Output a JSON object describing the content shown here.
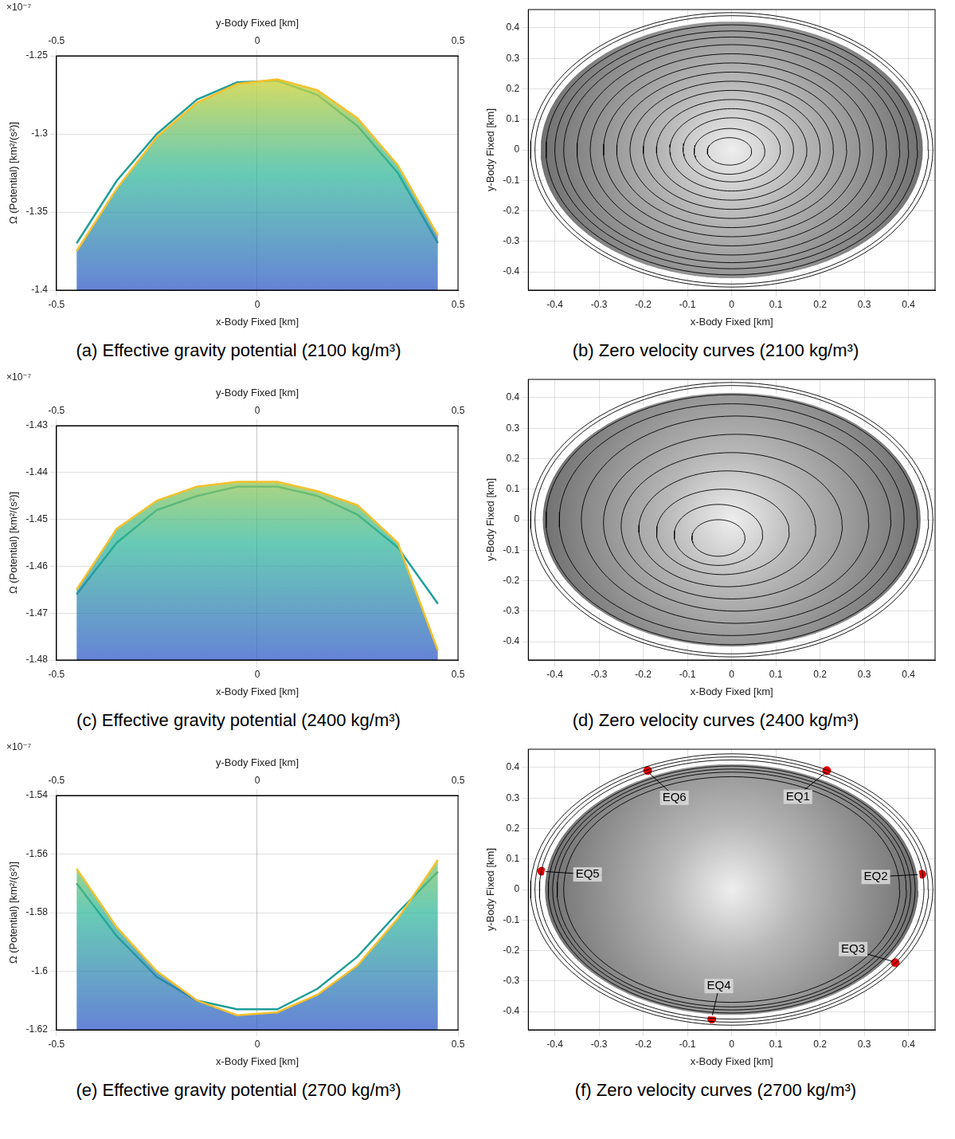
{
  "chart_data": [
    {
      "type": "line",
      "title": "(a) Effective gravity potential (2100 kg/m³)",
      "x_label": "x-Body Fixed [km]",
      "x2_label": "y-Body Fixed [km]",
      "y_label": "Ω (Potential) [km²/(s²)]",
      "y_multiplier": "×10⁻⁷",
      "xlim": [
        -0.5,
        0.5
      ],
      "xticks": [
        -0.5,
        0,
        0.5
      ],
      "x2lim": [
        -0.5,
        0.5
      ],
      "x2ticks": [
        -0.5,
        0,
        0.5
      ],
      "ylim": [
        -1.4,
        -1.25
      ],
      "yticks": [
        -1.4,
        -1.35,
        -1.3,
        -1.25
      ],
      "grid": true,
      "x": [
        -0.45,
        -0.35,
        -0.25,
        -0.15,
        -0.05,
        0.05,
        0.15,
        0.25,
        0.35,
        0.45
      ],
      "series": [
        {
          "color": "#f5c02c",
          "values": [
            -1.375,
            -1.335,
            -1.302,
            -1.28,
            -1.268,
            -1.265,
            -1.272,
            -1.29,
            -1.32,
            -1.365
          ]
        },
        {
          "color": "#1f9e9a",
          "axis": "x2",
          "values": [
            -1.37,
            -1.33,
            -1.3,
            -1.278,
            -1.267,
            -1.266,
            -1.275,
            -1.295,
            -1.325,
            -1.37
          ]
        }
      ]
    },
    {
      "type": "contour",
      "title": "(b) Zero velocity curves (2100 kg/m³)",
      "x_label": "x-Body Fixed [km]",
      "y_label": "y-Body Fixed [km]",
      "xlim": [
        -0.46,
        0.46
      ],
      "xticks": [
        -0.4,
        -0.3,
        -0.2,
        -0.1,
        0,
        0.1,
        0.2,
        0.3,
        0.4
      ],
      "ylim": [
        -0.46,
        0.46
      ],
      "yticks": [
        -0.4,
        -0.3,
        -0.2,
        -0.1,
        0,
        0.1,
        0.2,
        0.3,
        0.4
      ],
      "grid": true,
      "color": "#000000",
      "boundary": [
        0,
        0,
        0.435,
        0.425
      ],
      "contours": [
        [
          -0.005,
          -0.005,
          0.05,
          0.045
        ],
        [
          -0.005,
          -0.005,
          0.08,
          0.075
        ],
        [
          0,
          0,
          0.11,
          0.105
        ],
        [
          0,
          0,
          0.14,
          0.135
        ],
        [
          0,
          0,
          0.17,
          0.165
        ],
        [
          0,
          0,
          0.2,
          0.195
        ],
        [
          0,
          0,
          0.23,
          0.225
        ],
        [
          0,
          0,
          0.26,
          0.255
        ],
        [
          0,
          0,
          0.29,
          0.285
        ],
        [
          0,
          0,
          0.32,
          0.315
        ],
        [
          0,
          0,
          0.35,
          0.345
        ],
        [
          0,
          0,
          0.38,
          0.37
        ],
        [
          0,
          0,
          0.4,
          0.39
        ],
        [
          0,
          0,
          0.42,
          0.41
        ],
        [
          0,
          0,
          0.445,
          0.44
        ],
        [
          0,
          0,
          0.455,
          0.45
        ]
      ]
    },
    {
      "type": "line",
      "title": "(c) Effective gravity potential (2400 kg/m³)",
      "x_label": "x-Body Fixed [km]",
      "x2_label": "y-Body Fixed [km]",
      "y_label": "Ω (Potential) [km²/(s²)]",
      "y_multiplier": "×10⁻⁷",
      "xlim": [
        -0.5,
        0.5
      ],
      "xticks": [
        -0.5,
        0,
        0.5
      ],
      "x2lim": [
        -0.5,
        0.5
      ],
      "x2ticks": [
        -0.5,
        0,
        0.5
      ],
      "ylim": [
        -1.48,
        -1.43
      ],
      "yticks": [
        -1.48,
        -1.47,
        -1.46,
        -1.45,
        -1.44,
        -1.43
      ],
      "grid": true,
      "x": [
        -0.45,
        -0.35,
        -0.25,
        -0.15,
        -0.05,
        0.05,
        0.15,
        0.25,
        0.35,
        0.45
      ],
      "series": [
        {
          "color": "#f5c02c",
          "values": [
            -1.465,
            -1.452,
            -1.446,
            -1.443,
            -1.442,
            -1.442,
            -1.444,
            -1.447,
            -1.455,
            -1.478
          ]
        },
        {
          "color": "#1f9e9a",
          "axis": "x2",
          "values": [
            -1.466,
            -1.455,
            -1.448,
            -1.445,
            -1.443,
            -1.443,
            -1.445,
            -1.449,
            -1.456,
            -1.468
          ]
        }
      ]
    },
    {
      "type": "contour",
      "title": "(d) Zero velocity curves (2400 kg/m³)",
      "x_label": "x-Body Fixed [km]",
      "y_label": "y-Body Fixed [km]",
      "xlim": [
        -0.46,
        0.46
      ],
      "xticks": [
        -0.4,
        -0.3,
        -0.2,
        -0.1,
        0,
        0.1,
        0.2,
        0.3,
        0.4
      ],
      "ylim": [
        -0.46,
        0.46
      ],
      "yticks": [
        -0.4,
        -0.3,
        -0.2,
        -0.1,
        0,
        0.1,
        0.2,
        0.3,
        0.4
      ],
      "grid": true,
      "color": "#000000",
      "boundary": [
        0,
        0,
        0.43,
        0.42
      ],
      "contours": [
        [
          -0.03,
          -0.06,
          0.06,
          0.06
        ],
        [
          -0.03,
          -0.05,
          0.1,
          0.1
        ],
        [
          -0.02,
          -0.04,
          0.15,
          0.14
        ],
        [
          -0.01,
          -0.03,
          0.2,
          0.19
        ],
        [
          0,
          -0.02,
          0.25,
          0.24
        ],
        [
          0.01,
          -0.01,
          0.3,
          0.29
        ],
        [
          0.01,
          0,
          0.35,
          0.34
        ],
        [
          0,
          0,
          0.39,
          0.38
        ],
        [
          0,
          0,
          0.42,
          0.41
        ],
        [
          0,
          0,
          0.445,
          0.44
        ],
        [
          0,
          0,
          0.455,
          0.45
        ]
      ]
    },
    {
      "type": "line",
      "title": "(e) Effective gravity potential (2700 kg/m³)",
      "x_label": "x-Body Fixed [km]",
      "x2_label": "y-Body Fixed [km]",
      "y_label": "Ω (Potential) [km²/(s²)]",
      "y_multiplier": "×10⁻⁷",
      "xlim": [
        -0.5,
        0.5
      ],
      "xticks": [
        -0.5,
        0,
        0.5
      ],
      "x2lim": [
        -0.5,
        0.5
      ],
      "x2ticks": [
        -0.5,
        0,
        0.5
      ],
      "ylim": [
        -1.62,
        -1.54
      ],
      "yticks": [
        -1.62,
        -1.6,
        -1.58,
        -1.56,
        -1.54
      ],
      "grid": true,
      "x": [
        -0.45,
        -0.35,
        -0.25,
        -0.15,
        -0.05,
        0.05,
        0.15,
        0.25,
        0.35,
        0.45
      ],
      "series": [
        {
          "color": "#f5c02c",
          "values": [
            -1.565,
            -1.585,
            -1.6,
            -1.61,
            -1.615,
            -1.614,
            -1.608,
            -1.598,
            -1.582,
            -1.562
          ]
        },
        {
          "color": "#1f9e9a",
          "axis": "x2",
          "values": [
            -1.57,
            -1.588,
            -1.602,
            -1.61,
            -1.613,
            -1.613,
            -1.606,
            -1.595,
            -1.58,
            -1.566
          ]
        }
      ]
    },
    {
      "type": "contour",
      "title": "(f) Zero velocity curves (2700 kg/m³)",
      "x_label": "x-Body Fixed [km]",
      "y_label": "y-Body Fixed [km]",
      "xlim": [
        -0.46,
        0.46
      ],
      "xticks": [
        -0.4,
        -0.3,
        -0.2,
        -0.1,
        0,
        0.1,
        0.2,
        0.3,
        0.4
      ],
      "ylim": [
        -0.46,
        0.46
      ],
      "yticks": [
        -0.4,
        -0.3,
        -0.2,
        -0.1,
        0,
        0.1,
        0.2,
        0.3,
        0.4
      ],
      "grid": true,
      "color": "#000000",
      "boundary": [
        0,
        0,
        0.425,
        0.415
      ],
      "contours": [
        [
          0,
          0,
          0.38,
          0.37
        ],
        [
          0,
          0,
          0.395,
          0.385
        ],
        [
          0,
          0,
          0.405,
          0.395
        ],
        [
          0,
          0,
          0.415,
          0.405
        ],
        [
          0,
          0,
          0.435,
          0.425
        ],
        [
          0,
          0,
          0.445,
          0.435
        ],
        [
          0,
          0,
          0.455,
          0.445
        ]
      ],
      "equilibria": {
        "labels": [
          "EQ1",
          "EQ2",
          "EQ3",
          "EQ4",
          "EQ5",
          "EQ6"
        ],
        "x": [
          0.215,
          0.43,
          0.37,
          -0.045,
          -0.43,
          -0.19
        ],
        "y": [
          0.39,
          0.05,
          -0.24,
          -0.425,
          0.06,
          0.39
        ],
        "color": "#e00000",
        "marker": "circle"
      }
    }
  ]
}
